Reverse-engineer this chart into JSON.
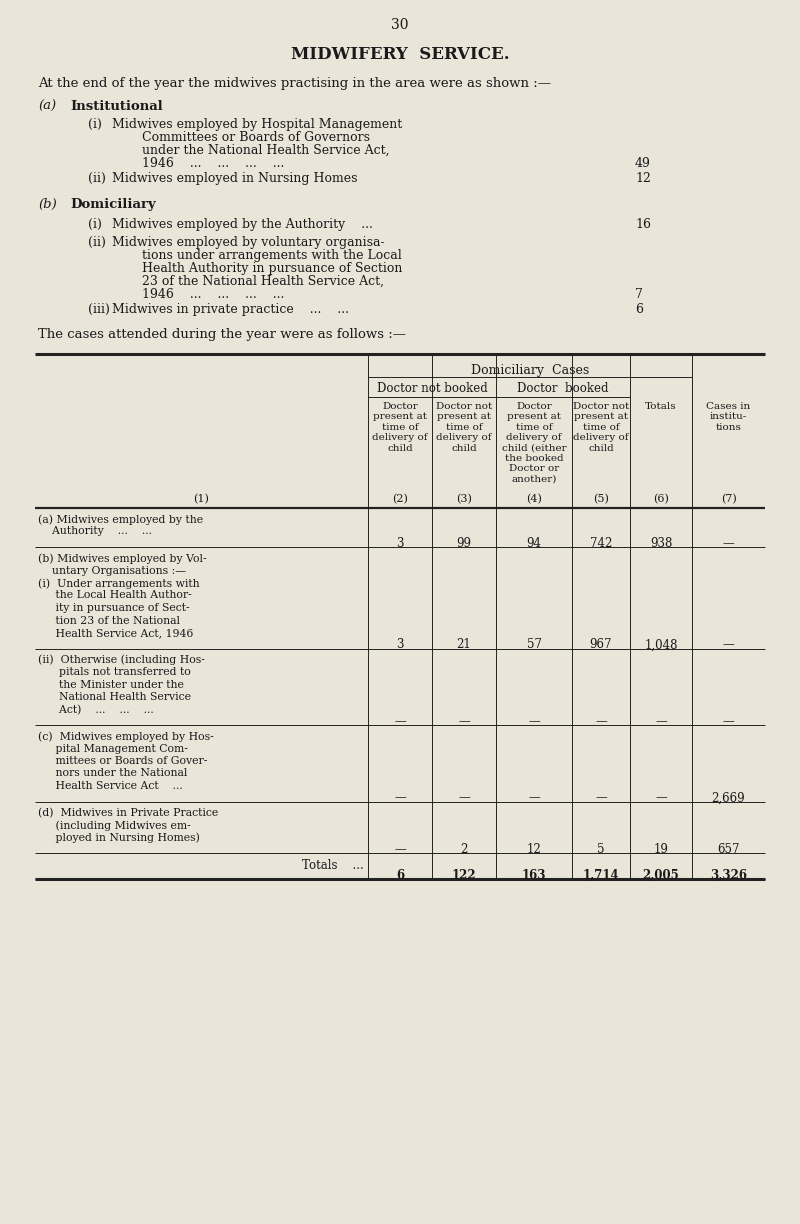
{
  "page_number": "30",
  "title": "MIDWIFERY  SERVICE.",
  "intro_text": "At the end of the year the midwives practising in the area were as shown :—",
  "bg_color": "#e9e5d9",
  "text_color": "#1a1a1a",
  "table": {
    "rows": [
      {
        "label_lines": [
          "(a) Midwives employed by the",
          "    Authority    ...    ..."
        ],
        "col2": "3",
        "col3": "99",
        "col4": "94",
        "col5": "742",
        "col6": "938",
        "col7": "—",
        "is_total": false
      },
      {
        "label_lines": [
          "(b) Midwives employed by Vol-",
          "    untary Organisations :—",
          "(i)  Under arrangements with",
          "     the Local Health Author-",
          "     ity in pursuance of Sect-",
          "     tion 23 of the National",
          "     Health Service Act, 1946"
        ],
        "col2": "3",
        "col3": "21",
        "col4": "57",
        "col5": "967",
        "col6": "1,048",
        "col7": "—",
        "is_total": false
      },
      {
        "label_lines": [
          "(ii)  Otherwise (including Hos-",
          "      pitals not transferred to",
          "      the Minister under the",
          "      National Health Service",
          "      Act)    ...    ...    ..."
        ],
        "col2": "—",
        "col3": "—",
        "col4": "—",
        "col5": "—",
        "col6": "—",
        "col7": "—",
        "is_total": false
      },
      {
        "label_lines": [
          "(c)  Midwives employed by Hos-",
          "     pital Management Com-",
          "     mittees or Boards of Gover-",
          "     nors under the National",
          "     Health Service Act    ..."
        ],
        "col2": "—",
        "col3": "—",
        "col4": "—",
        "col5": "—",
        "col6": "—",
        "col7": "2,669",
        "is_total": false
      },
      {
        "label_lines": [
          "(d)  Midwives in Private Practice",
          "     (including Midwives em-",
          "     ployed in Nursing Homes)"
        ],
        "col2": "—",
        "col3": "2",
        "col4": "12",
        "col5": "5",
        "col6": "19",
        "col7": "657",
        "is_total": false
      },
      {
        "label_lines": [
          "Totals    ..."
        ],
        "col2": "6",
        "col3": "122",
        "col4": "163",
        "col5": "1,714",
        "col6": "2,005",
        "col7": "3,326",
        "is_total": true
      }
    ]
  }
}
